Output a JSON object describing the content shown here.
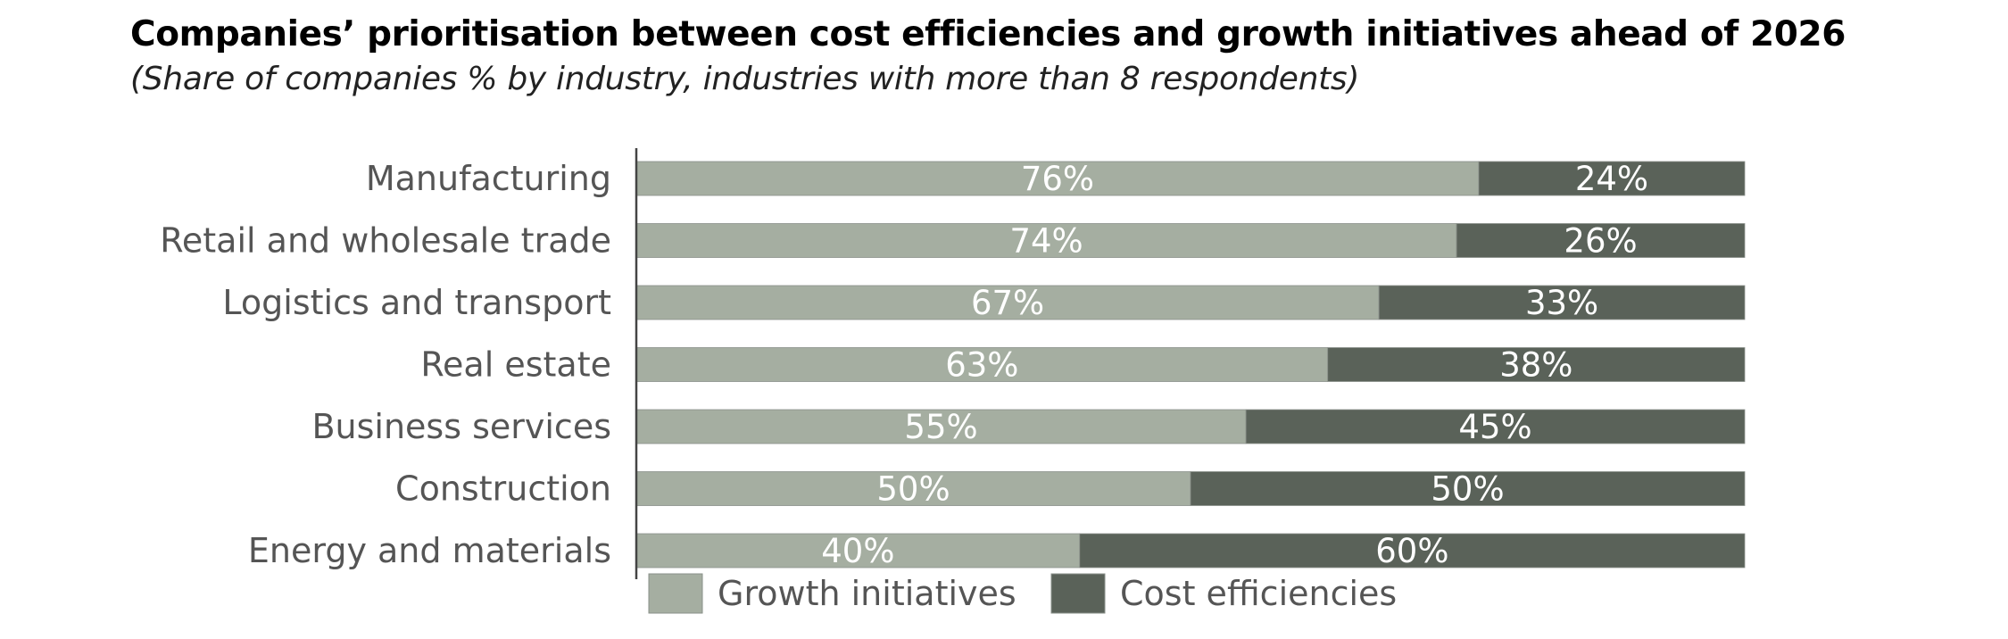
{
  "title": "Companies’ prioritisation between cost efficiencies and growth initiatives ahead of 2026",
  "subtitle": "(Share of companies % by industry, industries with more than 8 respondents)",
  "chart_data": {
    "type": "bar",
    "orientation": "horizontal",
    "stacked": true,
    "percent_stacked": true,
    "title": "Companies’ prioritisation between cost efficiencies and growth initiatives ahead of 2026",
    "subtitle": "(Share of companies % by industry, industries with more than 8 respondents)",
    "categories": [
      "Manufacturing",
      "Retail and wholesale trade",
      "Logistics and transport",
      "Real estate",
      "Business services",
      "Construction",
      "Energy and materials"
    ],
    "series": [
      {
        "name": "Growth initiatives",
        "color": "#a5aea1",
        "values": [
          76,
          74,
          67,
          63,
          55,
          50,
          40
        ],
        "labels": [
          "76%",
          "74%",
          "67%",
          "63%",
          "55%",
          "50%",
          "40%"
        ]
      },
      {
        "name": "Cost efficiencies",
        "color": "#5a6259",
        "values": [
          24,
          26,
          33,
          38,
          45,
          50,
          60
        ],
        "labels": [
          "24%",
          "26%",
          "33%",
          "38%",
          "45%",
          "50%",
          "60%"
        ]
      }
    ],
    "xlim": [
      0,
      100
    ],
    "grid": false,
    "legend_position": "bottom",
    "xlabel": "",
    "ylabel": ""
  }
}
